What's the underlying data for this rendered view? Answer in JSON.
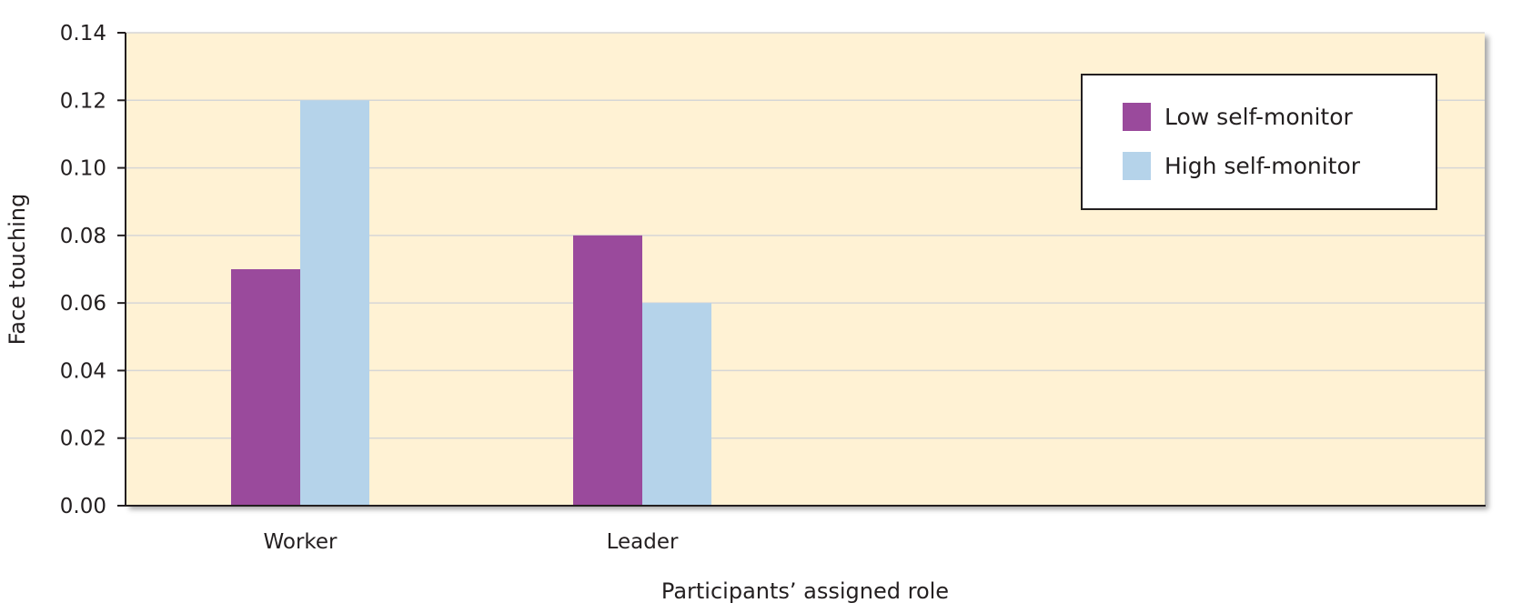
{
  "chart_data": {
    "type": "bar",
    "title": "",
    "xlabel": "Participants’ assigned role",
    "ylabel": "Face touching",
    "categories": [
      "Worker",
      "Leader"
    ],
    "series": [
      {
        "name": "Low self-monitor",
        "values": [
          0.07,
          0.08
        ],
        "color": "#9a4a9c"
      },
      {
        "name": "High self-monitor",
        "values": [
          0.12,
          0.06
        ],
        "color": "#b5d3ea"
      }
    ],
    "ylim": [
      0,
      0.14
    ],
    "yticks": [
      "0.00",
      "0.02",
      "0.04",
      "0.06",
      "0.08",
      "0.10",
      "0.12",
      "0.14"
    ],
    "grid": true,
    "legend_position": "top-right",
    "colors": {
      "plot_background": "#fff2d4",
      "gridline": "#d6d6d6",
      "axis": "#231f20"
    }
  }
}
